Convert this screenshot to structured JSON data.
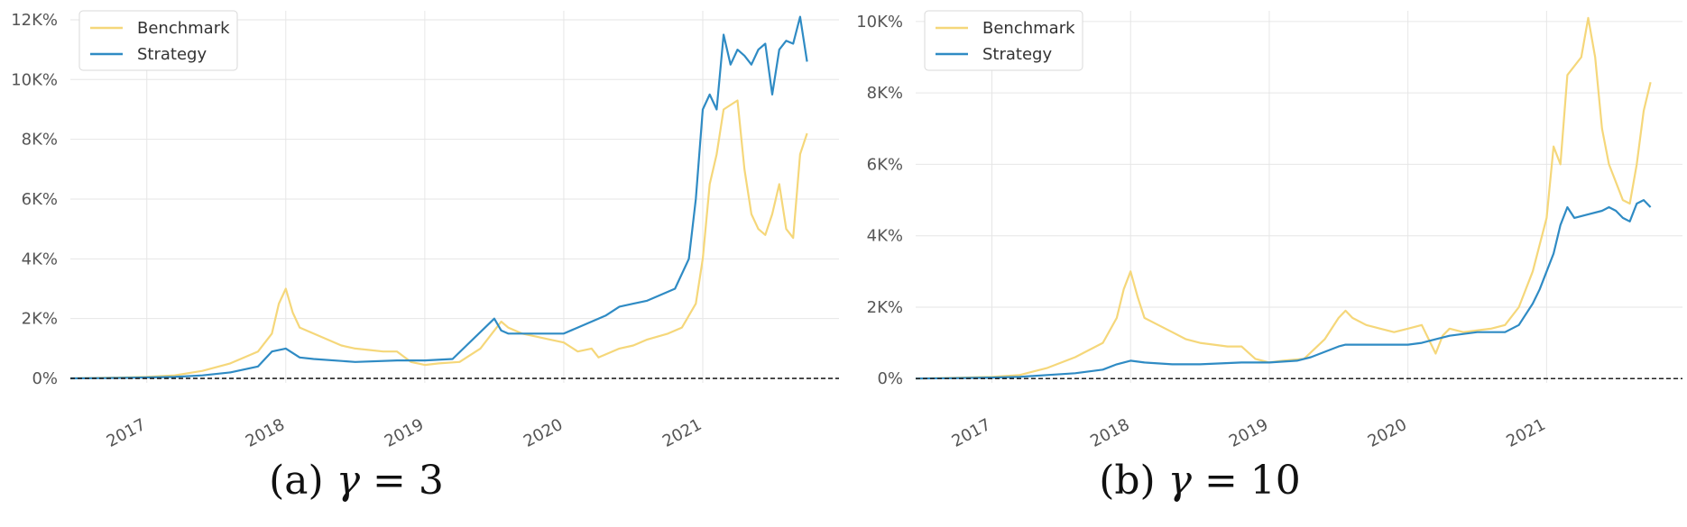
{
  "colors": {
    "benchmark": "#f5d77a",
    "strategy": "#2f8bc4",
    "baseline": "#222222"
  },
  "chart_data": [
    {
      "type": "line",
      "caption_prefix": "(a) ",
      "caption_symbol": "γ",
      "caption_value": " = 3",
      "x_tick_labels": [
        "2017",
        "2018",
        "2019",
        "2020",
        "2021"
      ],
      "x_tick_values": [
        2017,
        2018,
        2019,
        2020,
        2021
      ],
      "xlim": [
        2016.45,
        2021.98
      ],
      "ylim": [
        -150,
        12300
      ],
      "y_ticks": [
        0,
        2000,
        4000,
        6000,
        8000,
        10000,
        12000
      ],
      "y_tick_labels": [
        "0%",
        "2K%",
        "4K%",
        "6K%",
        "8K%",
        "10K%",
        "12K%"
      ],
      "legend": [
        "Benchmark",
        "Strategy"
      ],
      "legend_position": "top-left",
      "baseline_y": 0,
      "series": [
        {
          "name": "Benchmark",
          "x": [
            2016.45,
            2016.7,
            2017.0,
            2017.2,
            2017.4,
            2017.6,
            2017.8,
            2017.9,
            2017.95,
            2018.0,
            2018.05,
            2018.1,
            2018.2,
            2018.3,
            2018.4,
            2018.5,
            2018.6,
            2018.7,
            2018.8,
            2018.9,
            2019.0,
            2019.1,
            2019.25,
            2019.4,
            2019.5,
            2019.55,
            2019.6,
            2019.7,
            2019.8,
            2019.9,
            2020.0,
            2020.1,
            2020.2,
            2020.25,
            2020.4,
            2020.5,
            2020.6,
            2020.75,
            2020.85,
            2020.95,
            2021.0,
            2021.05,
            2021.1,
            2021.15,
            2021.25,
            2021.3,
            2021.35,
            2021.4,
            2021.45,
            2021.5,
            2021.55,
            2021.6,
            2021.65,
            2021.7,
            2021.75
          ],
          "values": [
            0,
            20,
            50,
            100,
            250,
            500,
            900,
            1500,
            2500,
            3000,
            2200,
            1700,
            1500,
            1300,
            1100,
            1000,
            950,
            900,
            900,
            550,
            450,
            500,
            550,
            1000,
            1600,
            1900,
            1700,
            1500,
            1400,
            1300,
            1200,
            900,
            1000,
            700,
            1000,
            1100,
            1300,
            1500,
            1700,
            2500,
            4000,
            6500,
            7500,
            9000,
            9300,
            7000,
            5500,
            5000,
            4800,
            5500,
            6500,
            5000,
            4700,
            7500,
            8200
          ]
        },
        {
          "name": "Strategy",
          "x": [
            2016.45,
            2016.7,
            2017.0,
            2017.2,
            2017.4,
            2017.6,
            2017.8,
            2017.9,
            2018.0,
            2018.1,
            2018.2,
            2018.5,
            2018.8,
            2019.0,
            2019.2,
            2019.3,
            2019.5,
            2019.55,
            2019.6,
            2019.8,
            2020.0,
            2020.1,
            2020.2,
            2020.3,
            2020.4,
            2020.5,
            2020.6,
            2020.7,
            2020.8,
            2020.9,
            2020.95,
            2021.0,
            2021.05,
            2021.1,
            2021.15,
            2021.2,
            2021.25,
            2021.3,
            2021.35,
            2021.4,
            2021.45,
            2021.5,
            2021.55,
            2021.6,
            2021.65,
            2021.7,
            2021.75
          ],
          "values": [
            0,
            10,
            30,
            50,
            100,
            200,
            400,
            900,
            1000,
            700,
            650,
            550,
            600,
            600,
            650,
            1100,
            2000,
            1600,
            1500,
            1500,
            1500,
            1700,
            1900,
            2100,
            2400,
            2500,
            2600,
            2800,
            3000,
            4000,
            6000,
            9000,
            9500,
            9000,
            11500,
            10500,
            11000,
            10800,
            10500,
            11000,
            11200,
            9500,
            11000,
            11300,
            11200,
            12100,
            10600
          ]
        }
      ]
    },
    {
      "type": "line",
      "caption_prefix": "(b) ",
      "caption_symbol": "γ",
      "caption_value": " = 10",
      "x_tick_labels": [
        "2017",
        "2018",
        "2019",
        "2020",
        "2021"
      ],
      "x_tick_values": [
        2017,
        2018,
        2019,
        2020,
        2021
      ],
      "xlim": [
        2016.45,
        2021.98
      ],
      "ylim": [
        -120,
        10300
      ],
      "y_ticks": [
        0,
        2000,
        4000,
        6000,
        8000,
        10000
      ],
      "y_tick_labels": [
        "0%",
        "2K%",
        "4K%",
        "6K%",
        "8K%",
        "10K%"
      ],
      "legend": [
        "Benchmark",
        "Strategy"
      ],
      "legend_position": "top-left",
      "baseline_y": 0,
      "series": [
        {
          "name": "Benchmark",
          "x": [
            2016.45,
            2016.7,
            2017.0,
            2017.2,
            2017.4,
            2017.6,
            2017.8,
            2017.9,
            2017.95,
            2018.0,
            2018.05,
            2018.1,
            2018.2,
            2018.3,
            2018.4,
            2018.5,
            2018.6,
            2018.7,
            2018.8,
            2018.9,
            2019.0,
            2019.1,
            2019.25,
            2019.4,
            2019.5,
            2019.55,
            2019.6,
            2019.7,
            2019.8,
            2019.9,
            2020.0,
            2020.1,
            2020.2,
            2020.25,
            2020.3,
            2020.4,
            2020.5,
            2020.6,
            2020.7,
            2020.8,
            2020.9,
            2021.0,
            2021.05,
            2021.1,
            2021.15,
            2021.25,
            2021.3,
            2021.35,
            2021.4,
            2021.45,
            2021.5,
            2021.55,
            2021.6,
            2021.65,
            2021.7,
            2021.75
          ],
          "values": [
            0,
            20,
            50,
            100,
            300,
            600,
            1000,
            1700,
            2500,
            3000,
            2300,
            1700,
            1500,
            1300,
            1100,
            1000,
            950,
            900,
            900,
            550,
            450,
            500,
            550,
            1100,
            1700,
            1900,
            1700,
            1500,
            1400,
            1300,
            1400,
            1500,
            700,
            1200,
            1400,
            1300,
            1350,
            1400,
            1500,
            2000,
            3000,
            4500,
            6500,
            6000,
            8500,
            9000,
            10100,
            9000,
            7000,
            6000,
            5500,
            5000,
            4900,
            6000,
            7500,
            8300
          ]
        },
        {
          "name": "Strategy",
          "x": [
            2016.45,
            2016.7,
            2017.0,
            2017.2,
            2017.4,
            2017.6,
            2017.8,
            2017.9,
            2018.0,
            2018.1,
            2018.3,
            2018.5,
            2018.8,
            2019.0,
            2019.2,
            2019.3,
            2019.5,
            2019.55,
            2019.6,
            2019.8,
            2020.0,
            2020.1,
            2020.2,
            2020.3,
            2020.5,
            2020.7,
            2020.8,
            2020.9,
            2020.95,
            2021.0,
            2021.05,
            2021.1,
            2021.15,
            2021.2,
            2021.3,
            2021.4,
            2021.45,
            2021.5,
            2021.55,
            2021.6,
            2021.65,
            2021.7,
            2021.75
          ],
          "values": [
            0,
            10,
            30,
            50,
            100,
            150,
            250,
            400,
            500,
            450,
            400,
            400,
            450,
            450,
            500,
            600,
            900,
            950,
            950,
            950,
            950,
            1000,
            1100,
            1200,
            1300,
            1300,
            1500,
            2100,
            2500,
            3000,
            3500,
            4300,
            4800,
            4500,
            4600,
            4700,
            4800,
            4700,
            4500,
            4400,
            4900,
            5000,
            4800
          ]
        }
      ]
    }
  ]
}
